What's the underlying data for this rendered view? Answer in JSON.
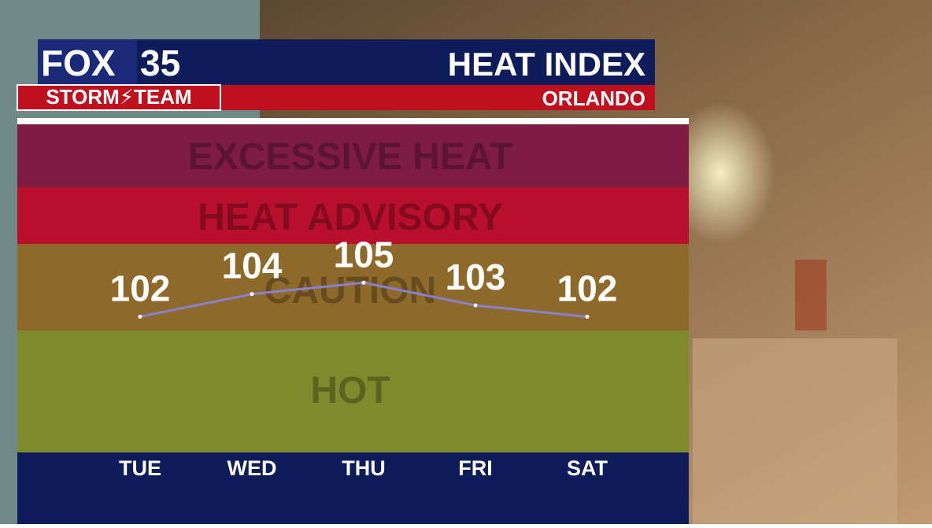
{
  "header": {
    "logo_fox": "FOX",
    "logo_number": "35",
    "logo_team": "STORM⚡TEAM",
    "title": "HEAT INDEX",
    "location": "ORLANDO"
  },
  "chart_data": {
    "type": "line",
    "bands": [
      "EXCESSIVE HEAT",
      "HEAT ADVISORY",
      "CAUTION",
      "HOT"
    ],
    "categories": [
      "TUE",
      "WED",
      "THU",
      "FRI",
      "SAT"
    ],
    "values": [
      102,
      104,
      105,
      103,
      102
    ],
    "color": "#8a7fd0",
    "ylim": [
      90,
      119
    ]
  }
}
